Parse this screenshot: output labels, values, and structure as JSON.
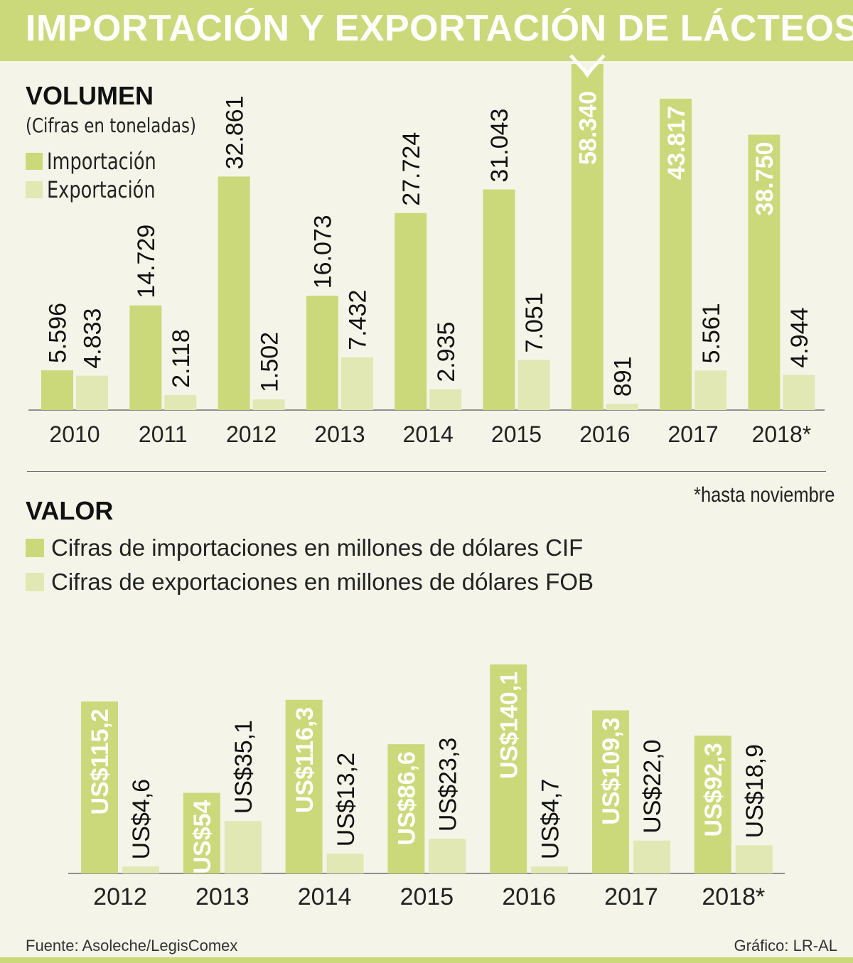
{
  "title": "IMPORTACIÓN Y EXPORTACIÓN DE LÁCTEOS",
  "colors": {
    "import": "#cbd97a",
    "export": "#e1e8b3",
    "background": "#f4f5e8",
    "banner": "#cbd97a"
  },
  "volume": {
    "title": "VOLUMEN",
    "subtitle": "(Cifras en toneladas)",
    "legend": {
      "import": "Importación",
      "export": "Exportación"
    }
  },
  "value": {
    "title": "VALOR",
    "legend": {
      "import": "Cifras de importaciones en millones de dólares CIF",
      "export": "Cifras de exportaciones en millones de dólares FOB"
    }
  },
  "footnote": "*hasta noviembre",
  "source": "Fuente: Asoleche/LegisComex",
  "credit": "Gráfico: LR-AL",
  "chart_data": [
    {
      "type": "bar",
      "title": "VOLUMEN",
      "subtitle": "(Cifras en toneladas)",
      "categories": [
        "2010",
        "2011",
        "2012",
        "2013",
        "2014",
        "2015",
        "2016",
        "2017",
        "2018*"
      ],
      "series": [
        {
          "name": "Importación",
          "values": [
            5596,
            14729,
            32861,
            16073,
            27724,
            31043,
            58340,
            43817,
            38750
          ],
          "labels": [
            "5.596",
            "14.729",
            "32.861",
            "16.073",
            "27.724",
            "31.043",
            "58.340",
            "43.817",
            "38.750"
          ]
        },
        {
          "name": "Exportación",
          "values": [
            4833,
            2118,
            1502,
            7432,
            2935,
            7051,
            891,
            5561,
            4944
          ],
          "labels": [
            "4.833",
            "2.118",
            "1.502",
            "7.432",
            "2.935",
            "7.051",
            "891",
            "5.561",
            "4.944"
          ]
        }
      ],
      "legend_position": "top-left",
      "broken_bar_category": "2016",
      "grid": false
    },
    {
      "type": "bar",
      "title": "VALOR",
      "categories": [
        "2012",
        "2013",
        "2014",
        "2015",
        "2016",
        "2017",
        "2018*"
      ],
      "series": [
        {
          "name": "Cifras de importaciones en millones de dólares CIF",
          "values": [
            115.2,
            54,
            116.3,
            86.6,
            140.1,
            109.3,
            92.3
          ],
          "labels": [
            "US$115,2",
            "US$54",
            "US$116,3",
            "US$86,6",
            "US$140,1",
            "US$109,3",
            "US$92,3"
          ]
        },
        {
          "name": "Cifras de exportaciones en millones de dólares FOB",
          "values": [
            4.6,
            35.1,
            13.2,
            23.3,
            4.7,
            22.0,
            18.9
          ],
          "labels": [
            "US$4,6",
            "US$35,1",
            "US$13,2",
            "US$23,3",
            "US$4,7",
            "US$22,0",
            "US$18,9"
          ]
        }
      ],
      "legend_position": "top-left",
      "grid": false
    }
  ]
}
